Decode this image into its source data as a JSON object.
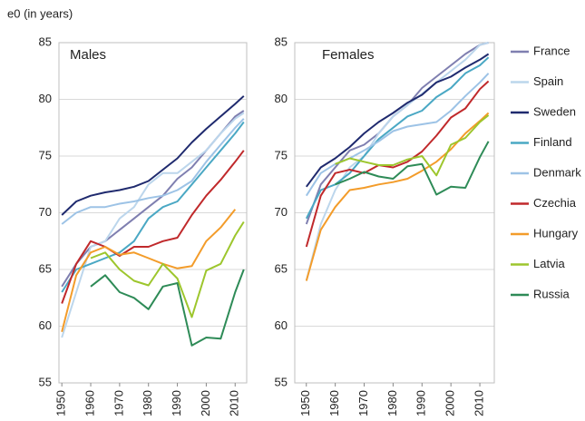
{
  "chart_data": [
    {
      "type": "line",
      "title": "Males",
      "ylabel": "e0 (in years)",
      "x": [
        1950,
        1955,
        1960,
        1965,
        1970,
        1975,
        1980,
        1985,
        1990,
        1995,
        2000,
        2005,
        2010,
        2013
      ],
      "xlim": [
        1949,
        2014
      ],
      "xticks": [
        1950,
        1960,
        1970,
        1980,
        1990,
        2000,
        2010
      ],
      "ylim": [
        55,
        85
      ],
      "yticks": [
        55,
        60,
        65,
        70,
        75,
        80,
        85
      ],
      "grid": true,
      "series": [
        {
          "name": "France",
          "color": "#7f7fb0",
          "values": [
            63.5,
            65.5,
            67,
            67.5,
            68.5,
            69.5,
            70.5,
            71.5,
            73,
            74,
            75.5,
            77,
            78.5,
            79
          ]
        },
        {
          "name": "Spain",
          "color": "#bcd6ec",
          "values": [
            59,
            63,
            67,
            67.5,
            69.5,
            70.5,
            72.5,
            73.5,
            73.5,
            74.5,
            75.5,
            77,
            78.3,
            78.8
          ]
        },
        {
          "name": "Sweden",
          "color": "#1f2a6e",
          "values": [
            69.8,
            71,
            71.5,
            71.8,
            72,
            72.3,
            72.8,
            73.8,
            74.8,
            76.2,
            77.4,
            78.5,
            79.6,
            80.3
          ]
        },
        {
          "name": "Finland",
          "color": "#4aa8c4",
          "values": [
            63,
            65,
            65.5,
            66,
            66.5,
            67.5,
            69.5,
            70.5,
            71,
            72.5,
            74,
            75.5,
            77,
            78
          ]
        },
        {
          "name": "Denmark",
          "color": "#9dc3e6",
          "values": [
            69,
            70,
            70.5,
            70.5,
            70.8,
            71,
            71.3,
            71.5,
            72,
            72.8,
            74.5,
            76,
            77.5,
            78.3
          ]
        },
        {
          "name": "Czechia",
          "color": "#c0292b",
          "values": [
            62,
            65.5,
            67.5,
            67,
            66.2,
            67,
            67,
            67.5,
            67.8,
            69.8,
            71.5,
            72.9,
            74.5,
            75.5
          ]
        },
        {
          "name": "Hungary",
          "color": "#f39c2a",
          "values": [
            59.5,
            64.5,
            66.5,
            67,
            66.3,
            66.5,
            66,
            65.5,
            65.1,
            65.3,
            67.5,
            68.7,
            70.3,
            null
          ]
        },
        {
          "name": "Latvia",
          "color": "#9dc62d",
          "values": [
            null,
            null,
            66,
            66.5,
            65,
            64,
            63.6,
            65.5,
            64.2,
            60.8,
            64.9,
            65.5,
            68,
            69.2
          ]
        },
        {
          "name": "Russia",
          "color": "#2e8b57",
          "values": [
            null,
            null,
            63.5,
            64.5,
            63,
            62.5,
            61.5,
            63.5,
            63.8,
            58.3,
            59,
            58.9,
            63,
            65
          ]
        }
      ]
    },
    {
      "type": "line",
      "title": "Females",
      "x": [
        1950,
        1955,
        1960,
        1965,
        1970,
        1975,
        1980,
        1985,
        1990,
        1995,
        2000,
        2005,
        2010,
        2013
      ],
      "xlim": [
        1946,
        2015
      ],
      "xticks": [
        1950,
        1960,
        1970,
        1980,
        1990,
        2000,
        2010
      ],
      "ylim": [
        55,
        85
      ],
      "yticks": [
        55,
        60,
        65,
        70,
        75,
        80,
        85
      ],
      "grid": true,
      "series": [
        {
          "name": "France",
          "color": "#7f7fb0",
          "values": [
            69,
            72.5,
            74,
            75.5,
            76,
            77,
            78.5,
            79.5,
            81,
            82,
            83,
            84,
            84.8,
            85
          ]
        },
        {
          "name": "Spain",
          "color": "#bcd6ec",
          "values": [
            64,
            69,
            72,
            74,
            75,
            77,
            78.5,
            79.5,
            80.5,
            81.5,
            82.5,
            83.5,
            84.8,
            85
          ]
        },
        {
          "name": "Sweden",
          "color": "#1f2a6e",
          "values": [
            72.3,
            74,
            74.8,
            75.8,
            77,
            78,
            78.8,
            79.7,
            80.4,
            81.5,
            82,
            82.8,
            83.5,
            84
          ]
        },
        {
          "name": "Finland",
          "color": "#4aa8c4",
          "values": [
            69.5,
            72,
            72.5,
            73.5,
            75,
            76.5,
            77.5,
            78.5,
            79,
            80.2,
            81,
            82.3,
            83,
            83.7
          ]
        },
        {
          "name": "Denmark",
          "color": "#9dc3e6",
          "values": [
            71.5,
            73.5,
            74.3,
            74.8,
            75.5,
            76.3,
            77.2,
            77.6,
            77.8,
            78,
            79,
            80.3,
            81.5,
            82.3
          ]
        },
        {
          "name": "Czechia",
          "color": "#c0292b",
          "values": [
            67,
            71.5,
            73.5,
            73.8,
            73.5,
            74.2,
            74,
            74.5,
            75.4,
            76.8,
            78.4,
            79.2,
            80.9,
            81.6
          ]
        },
        {
          "name": "Hungary",
          "color": "#f39c2a",
          "values": [
            64,
            68.5,
            70.5,
            72,
            72.2,
            72.5,
            72.7,
            73,
            73.7,
            74.5,
            75.6,
            77,
            78.1,
            78.8
          ]
        },
        {
          "name": "Latvia",
          "color": "#9dc62d",
          "values": [
            null,
            null,
            74.3,
            74.8,
            74.5,
            74.2,
            74.2,
            74.7,
            75,
            73.3,
            76,
            76.6,
            78,
            78.6
          ]
        },
        {
          "name": "Russia",
          "color": "#2e8b57",
          "values": [
            null,
            null,
            72.5,
            73,
            73.6,
            73.2,
            73,
            74.1,
            74.3,
            71.6,
            72.3,
            72.2,
            74.9,
            76.3
          ]
        }
      ]
    }
  ]
}
